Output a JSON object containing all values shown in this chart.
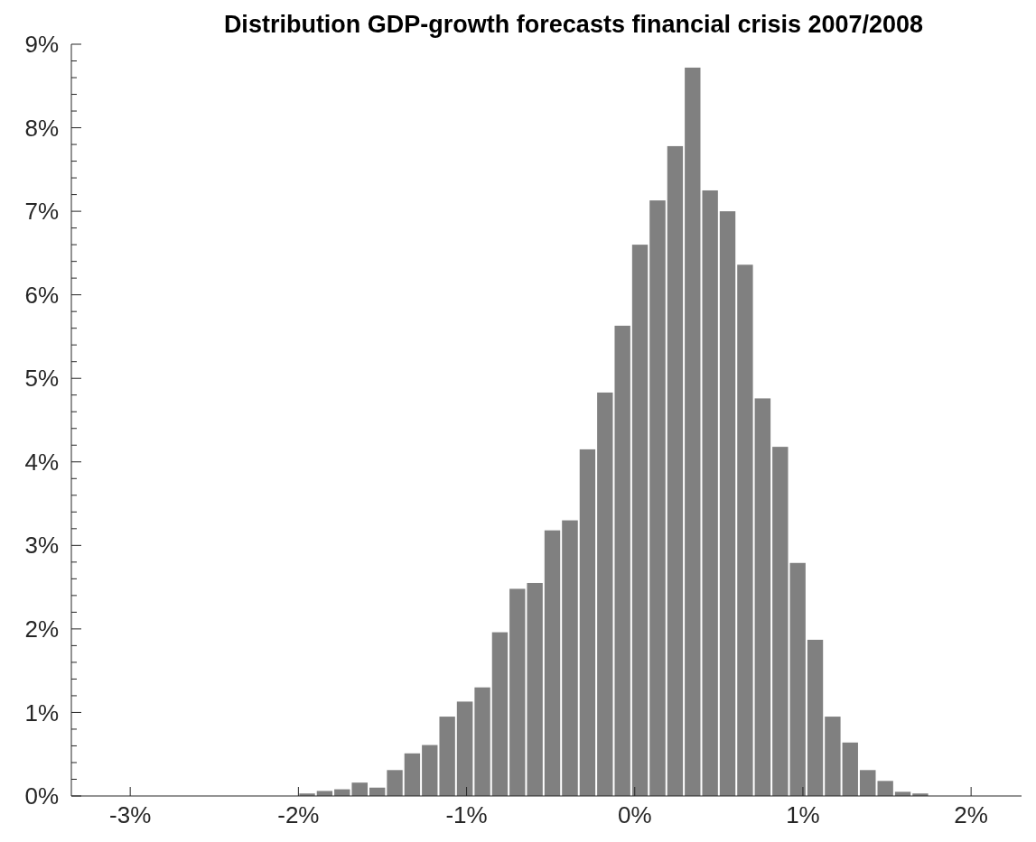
{
  "chart_data": {
    "type": "histogram",
    "title": "Distribution GDP-growth forecasts financial crisis 2007/2008",
    "bins": [
      -2,
      -1.896,
      -1.792,
      -1.688,
      -1.583,
      -1.479,
      -1.375,
      -1.271,
      -1.167,
      -1.063,
      -0.958,
      -0.854,
      -0.75,
      -0.646,
      -0.542,
      -0.438,
      -0.333,
      -0.229,
      -0.125,
      -0.021,
      0.083,
      0.188,
      0.292,
      0.396,
      0.5,
      0.604,
      0.708,
      0.813,
      0.917,
      1.021,
      1.125,
      1.229,
      1.333,
      1.438,
      1.542,
      1.646,
      1.75
    ],
    "values": [
      0.03,
      0.06,
      0.08,
      0.16,
      0.1,
      0.31,
      0.51,
      0.61,
      0.95,
      1.13,
      1.3,
      1.96,
      2.48,
      2.55,
      3.18,
      3.3,
      4.15,
      4.83,
      5.63,
      6.6,
      7.13,
      7.78,
      8.72,
      7.25,
      7.0,
      6.36,
      4.76,
      4.18,
      2.79,
      1.87,
      0.95,
      0.64,
      0.31,
      0.18,
      0.05,
      0.03
    ],
    "color": "#808080",
    "xlim": [
      -3.35,
      2.3
    ],
    "xticks": [
      {
        "value": -3,
        "label": "-3%"
      },
      {
        "value": -2,
        "label": "-2%"
      },
      {
        "value": -1,
        "label": "-1%"
      },
      {
        "value": 0,
        "label": "0%"
      },
      {
        "value": 1,
        "label": "1%"
      },
      {
        "value": 2,
        "label": "2%"
      }
    ],
    "ylim": [
      0,
      9
    ],
    "yticks": [
      {
        "value": 0,
        "label": "0%"
      },
      {
        "value": 0.2,
        "label": null
      },
      {
        "value": 0.4,
        "label": null
      },
      {
        "value": 0.6,
        "label": null
      },
      {
        "value": 0.8,
        "label": null
      },
      {
        "value": 1,
        "label": "1%"
      },
      {
        "value": 1.2,
        "label": null
      },
      {
        "value": 1.4,
        "label": null
      },
      {
        "value": 1.6,
        "label": null
      },
      {
        "value": 1.8,
        "label": null
      },
      {
        "value": 2,
        "label": "2%"
      },
      {
        "value": 2.2,
        "label": null
      },
      {
        "value": 2.4,
        "label": null
      },
      {
        "value": 2.6,
        "label": null
      },
      {
        "value": 2.8,
        "label": null
      },
      {
        "value": 3,
        "label": "3%"
      },
      {
        "value": 3.2,
        "label": null
      },
      {
        "value": 3.4,
        "label": null
      },
      {
        "value": 3.6,
        "label": null
      },
      {
        "value": 3.8,
        "label": null
      },
      {
        "value": 4,
        "label": "4%"
      },
      {
        "value": 4.2,
        "label": null
      },
      {
        "value": 4.4,
        "label": null
      },
      {
        "value": 4.6,
        "label": null
      },
      {
        "value": 4.8,
        "label": null
      },
      {
        "value": 5,
        "label": "5%"
      },
      {
        "value": 5.2,
        "label": null
      },
      {
        "value": 5.4,
        "label": null
      },
      {
        "value": 5.6,
        "label": null
      },
      {
        "value": 5.8,
        "label": null
      },
      {
        "value": 6,
        "label": "6%"
      },
      {
        "value": 6.2,
        "label": null
      },
      {
        "value": 6.4,
        "label": null
      },
      {
        "value": 6.6,
        "label": null
      },
      {
        "value": 6.8,
        "label": null
      },
      {
        "value": 7,
        "label": "7%"
      },
      {
        "value": 7.2,
        "label": null
      },
      {
        "value": 7.4,
        "label": null
      },
      {
        "value": 7.6,
        "label": null
      },
      {
        "value": 7.8,
        "label": null
      },
      {
        "value": 8,
        "label": "8%"
      },
      {
        "value": 8.2,
        "label": null
      },
      {
        "value": 8.4,
        "label": null
      },
      {
        "value": 8.6,
        "label": null
      },
      {
        "value": 8.8,
        "label": null
      },
      {
        "value": 9,
        "label": "9%"
      }
    ],
    "grid": false
  }
}
